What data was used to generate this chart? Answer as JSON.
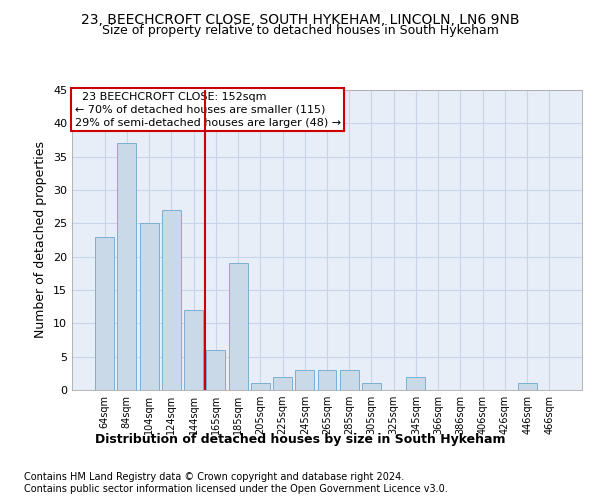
{
  "title1": "23, BEECHCROFT CLOSE, SOUTH HYKEHAM, LINCOLN, LN6 9NB",
  "title2": "Size of property relative to detached houses in South Hykeham",
  "xlabel": "Distribution of detached houses by size in South Hykeham",
  "ylabel": "Number of detached properties",
  "footnote1": "Contains HM Land Registry data © Crown copyright and database right 2024.",
  "footnote2": "Contains public sector information licensed under the Open Government Licence v3.0.",
  "annotation_line1": "23 BEECHCROFT CLOSE: 152sqm",
  "annotation_line2": "← 70% of detached houses are smaller (115)",
  "annotation_line3": "29% of semi-detached houses are larger (48) →",
  "bar_color": "#c9d9e8",
  "bar_edge_color": "#7aafd4",
  "vline_color": "#cc0000",
  "vline_x": 4.5,
  "grid_color": "#c8d4e8",
  "background_color": "#e8eef8",
  "categories": [
    "64sqm",
    "84sqm",
    "104sqm",
    "124sqm",
    "144sqm",
    "165sqm",
    "185sqm",
    "205sqm",
    "225sqm",
    "245sqm",
    "265sqm",
    "285sqm",
    "305sqm",
    "325sqm",
    "345sqm",
    "366sqm",
    "386sqm",
    "406sqm",
    "426sqm",
    "446sqm",
    "466sqm"
  ],
  "values": [
    23,
    37,
    25,
    27,
    12,
    6,
    19,
    1,
    2,
    3,
    3,
    3,
    1,
    0,
    2,
    0,
    0,
    0,
    0,
    1,
    0
  ],
  "ylim": [
    0,
    45
  ],
  "yticks": [
    0,
    5,
    10,
    15,
    20,
    25,
    30,
    35,
    40,
    45
  ],
  "title1_fontsize": 10,
  "title2_fontsize": 9,
  "xlabel_fontsize": 9,
  "ylabel_fontsize": 9,
  "tick_fontsize": 8,
  "xtick_fontsize": 7,
  "footnote_fontsize": 7,
  "ann_fontsize": 8
}
